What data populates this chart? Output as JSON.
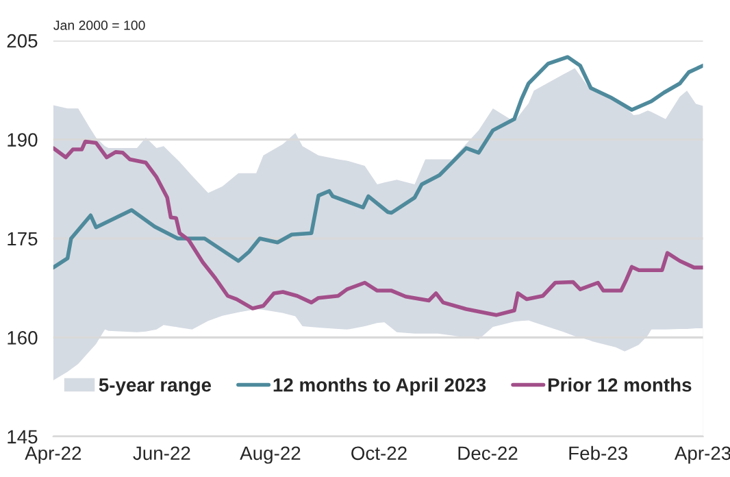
{
  "chart_data": {
    "type": "line",
    "ylabel": "Jan 2000 = 100",
    "xlim": [
      "2022-04-01",
      "2023-04-01"
    ],
    "xticks": [
      {
        "value": "2022-04-01",
        "label": "Apr-22"
      },
      {
        "value": "2022-06-01",
        "label": "Jun-22"
      },
      {
        "value": "2022-08-01",
        "label": "Aug-22"
      },
      {
        "value": "2022-10-01",
        "label": "Oct-22"
      },
      {
        "value": "2022-12-01",
        "label": "Dec-22"
      },
      {
        "value": "2023-02-01",
        "label": "Feb-23"
      },
      {
        "value": "2023-04-01",
        "label": "Apr-23"
      }
    ],
    "ylim": [
      145,
      205
    ],
    "yticks": [
      145,
      160,
      175,
      190,
      205
    ],
    "grid": "y",
    "legend": "bottom",
    "series": [
      {
        "type": "area",
        "x": [
          "2022-04-01",
          "2022-04-09",
          "2022-04-15",
          "2022-04-21",
          "2022-04-25",
          "2022-04-30",
          "2022-05-02",
          "2022-05-18",
          "2022-05-23",
          "2022-05-29",
          "2022-06-02",
          "2022-06-11",
          "2022-06-18",
          "2022-06-27",
          "2022-07-05",
          "2022-07-14",
          "2022-07-24",
          "2022-07-28",
          "2022-08-08",
          "2022-08-15",
          "2022-08-19",
          "2022-08-28",
          "2022-09-08",
          "2022-09-13",
          "2022-09-23",
          "2022-09-30",
          "2022-10-04",
          "2022-10-11",
          "2022-10-21",
          "2022-10-27",
          "2022-11-03",
          "2022-11-11",
          "2022-11-26",
          "2022-12-04",
          "2022-12-16",
          "2022-12-24",
          "2022-12-27",
          "2023-01-12",
          "2023-01-19",
          "2023-01-27",
          "2023-01-29",
          "2023-02-11",
          "2023-02-16",
          "2023-02-21",
          "2023-02-24",
          "2023-03-01",
          "2023-03-03",
          "2023-03-11",
          "2023-03-19",
          "2023-03-23",
          "2023-03-28",
          "2023-04-01"
        ],
        "values": [
          153.5,
          154.8,
          156,
          157.8,
          159,
          161.2,
          161,
          160.8,
          160.9,
          161.2,
          161.9,
          161.5,
          161.2,
          162.5,
          163.3,
          163.8,
          164.3,
          164.2,
          163.7,
          163.2,
          161.7,
          161.5,
          161.3,
          161.2,
          161.7,
          162.2,
          162.3,
          160.8,
          160.6,
          160.6,
          160.6,
          160.3,
          159.7,
          161.6,
          162.4,
          162.6,
          162.3,
          160.9,
          160.2,
          159.6,
          159.4,
          158.5,
          157.9,
          158.5,
          158.9,
          160.3,
          161.2,
          161.2,
          161.3,
          161.3,
          161.4,
          161.4
        ],
        "color": "#ffffff"
      },
      {
        "name": "5-year range",
        "type": "area",
        "color": "#d5dbe3",
        "x": [
          "2022-04-01",
          "2022-04-09",
          "2022-04-15",
          "2022-04-21",
          "2022-04-25",
          "2022-04-30",
          "2022-05-02",
          "2022-05-18",
          "2022-05-23",
          "2022-05-29",
          "2022-06-02",
          "2022-06-11",
          "2022-06-18",
          "2022-06-27",
          "2022-07-05",
          "2022-07-14",
          "2022-07-24",
          "2022-07-28",
          "2022-08-08",
          "2022-08-15",
          "2022-08-19",
          "2022-08-28",
          "2022-09-08",
          "2022-09-13",
          "2022-09-23",
          "2022-09-30",
          "2022-10-04",
          "2022-10-11",
          "2022-10-21",
          "2022-10-27",
          "2022-11-03",
          "2022-11-11",
          "2022-11-26",
          "2022-12-04",
          "2022-12-16",
          "2022-12-24",
          "2022-12-27",
          "2023-01-12",
          "2023-01-19",
          "2023-01-27",
          "2023-01-29",
          "2023-02-11",
          "2023-02-16",
          "2023-02-21",
          "2023-02-24",
          "2023-03-01",
          "2023-03-03",
          "2023-03-11",
          "2023-03-19",
          "2023-03-23",
          "2023-03-28",
          "2023-04-01"
        ],
        "values": [
          195.2,
          194.7,
          194.7,
          192.0,
          190.3,
          189,
          188.7,
          188.7,
          190.3,
          188.7,
          189,
          186.6,
          184.5,
          181.9,
          182.9,
          184.9,
          184.9,
          187.6,
          189.3,
          191.0,
          189,
          187.6,
          187,
          186.8,
          186,
          183.2,
          183.5,
          183.9,
          183.2,
          187.0,
          187,
          187,
          191.4,
          194.7,
          192.7,
          195.5,
          197.4,
          199.8,
          200.8,
          197.8,
          197.4,
          195.8,
          195,
          193.7,
          193.8,
          194.4,
          194.2,
          193.1,
          196.5,
          197.4,
          195.4,
          195.1
        ]
      },
      {
        "name": "12 months to April 2023",
        "color": "#4e8a9c",
        "x": [
          "2022-04-01",
          "2022-04-09",
          "2022-04-11",
          "2022-04-22",
          "2022-04-25",
          "2022-05-15",
          "2022-05-28",
          "2022-06-10",
          "2022-06-25",
          "2022-07-14",
          "2022-07-20",
          "2022-07-26",
          "2022-08-05",
          "2022-08-13",
          "2022-08-24",
          "2022-08-28",
          "2022-09-03",
          "2022-09-05",
          "2022-09-22",
          "2022-09-25",
          "2022-10-06",
          "2022-10-08",
          "2022-10-21",
          "2022-10-25",
          "2022-11-04",
          "2022-11-19",
          "2022-11-26",
          "2022-12-04",
          "2022-12-16",
          "2022-12-20",
          "2022-12-24",
          "2023-01-04",
          "2023-01-15",
          "2023-01-22",
          "2023-01-28",
          "2023-02-08",
          "2023-02-20",
          "2023-03-03",
          "2023-03-10",
          "2023-03-19",
          "2023-03-24",
          "2023-04-01"
        ],
        "values": [
          170.6,
          172.0,
          175.0,
          178.5,
          176.7,
          179.3,
          176.8,
          175.0,
          175.0,
          171.6,
          173,
          175,
          174.4,
          175.6,
          175.8,
          181.5,
          182.2,
          181.4,
          179.7,
          181.4,
          179.0,
          178.9,
          181.2,
          183.2,
          184.6,
          188.7,
          188,
          191.4,
          193.1,
          196.1,
          198.5,
          201.5,
          202.5,
          201.2,
          197.8,
          196.4,
          194.5,
          195.8,
          197.1,
          198.5,
          200.2,
          201.2
        ]
      },
      {
        "name": "Prior 12 months",
        "color": "#a24f8a",
        "x": [
          "2022-04-01",
          "2022-04-08",
          "2022-04-12",
          "2022-04-17",
          "2022-04-19",
          "2022-04-25",
          "2022-05-01",
          "2022-05-06",
          "2022-05-10",
          "2022-05-14",
          "2022-05-23",
          "2022-05-29",
          "2022-06-04",
          "2022-06-06",
          "2022-06-09",
          "2022-06-11",
          "2022-06-16",
          "2022-06-24",
          "2022-07-01",
          "2022-07-08",
          "2022-07-13",
          "2022-07-22",
          "2022-07-28",
          "2022-08-03",
          "2022-08-08",
          "2022-08-16",
          "2022-08-24",
          "2022-08-28",
          "2022-09-08",
          "2022-09-13",
          "2022-09-23",
          "2022-09-30",
          "2022-10-08",
          "2022-10-16",
          "2022-10-29",
          "2022-11-02",
          "2022-11-06",
          "2022-11-19",
          "2022-12-06",
          "2022-12-16",
          "2022-12-18",
          "2022-12-23",
          "2023-01-01",
          "2023-01-08",
          "2023-01-18",
          "2023-01-22",
          "2023-02-01",
          "2023-02-04",
          "2023-02-14",
          "2023-02-17",
          "2023-02-20",
          "2023-02-24",
          "2023-03-09",
          "2023-03-12",
          "2023-03-19",
          "2023-03-27",
          "2023-04-01"
        ],
        "values": [
          188.7,
          187.3,
          188.5,
          188.5,
          189.7,
          189.5,
          187.3,
          188.1,
          188,
          187,
          186.5,
          184.3,
          181.2,
          178.2,
          178.1,
          175.8,
          174.8,
          171.4,
          169.0,
          166.3,
          165.8,
          164.4,
          164.8,
          166.7,
          166.9,
          166.3,
          165.3,
          166,
          166.3,
          167.3,
          168.3,
          167.1,
          167.1,
          166.2,
          165.6,
          166.7,
          165.3,
          164.3,
          163.4,
          164.1,
          166.7,
          165.8,
          166.3,
          168.3,
          168.4,
          167.3,
          168.3,
          167.1,
          167.1,
          168.8,
          170.7,
          170.2,
          170.2,
          172.8,
          171.6,
          170.6,
          170.6
        ]
      }
    ]
  }
}
